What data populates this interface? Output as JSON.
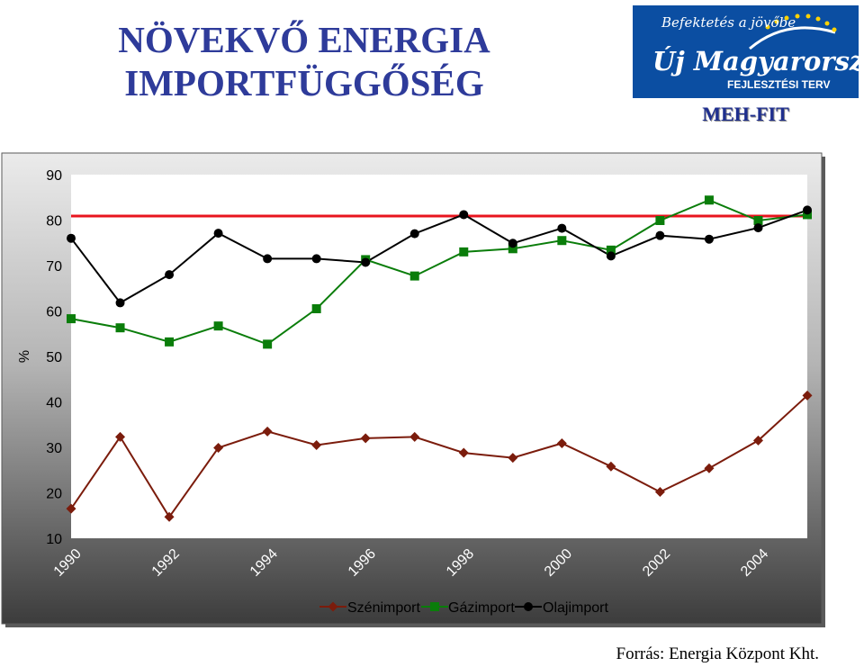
{
  "header": {
    "title_line1": "NÖVEKVŐ ENERGIA",
    "title_line2": "IMPORTFÜGGŐSÉG",
    "logo_tagline": "Befektetés a jövőbe",
    "logo_name": "Új Magyarország",
    "logo_subtitle": "FEJLESZTÉSI TERV",
    "org_label": "MEH-FIT"
  },
  "footer": {
    "source": "Forrás: Energia Központ Kht."
  },
  "colors": {
    "coal": "#7b1c0c",
    "gas": "#0a7d0a",
    "oil": "#000000",
    "reference": "#e8141e",
    "title": "#2e3b9a"
  },
  "chart_data": {
    "type": "line",
    "title": "",
    "xlabel": "",
    "ylabel": "%",
    "ylim": [
      10,
      90
    ],
    "yticks": [
      "10",
      "20",
      "30",
      "40",
      "50",
      "60",
      "70",
      "80",
      "90"
    ],
    "x": [
      1990,
      1991,
      1992,
      1993,
      1994,
      1995,
      1996,
      1997,
      1998,
      1999,
      2000,
      2001,
      2002,
      2003,
      2004,
      2005
    ],
    "xtick_labels": [
      "1990",
      "1992",
      "1994",
      "1996",
      "1998",
      "2000",
      "2002",
      "2004"
    ],
    "grid": false,
    "legend_position": "bottom",
    "reference_line": {
      "y": 80.9
    },
    "series": [
      {
        "name": "Szénimport",
        "marker": "diamond",
        "values": [
          16.5,
          32.3,
          14.7,
          29.9,
          33.5,
          30.5,
          32.0,
          32.3,
          28.8,
          27.7,
          30.9,
          25.8,
          20.2,
          25.4,
          31.5,
          41.4
        ]
      },
      {
        "name": "Gázimport",
        "marker": "square",
        "values": [
          58.3,
          56.3,
          53.2,
          56.7,
          52.7,
          60.5,
          71.3,
          67.7,
          73.0,
          73.7,
          75.5,
          73.4,
          79.9,
          84.4,
          79.9,
          81.2
        ]
      },
      {
        "name": "Olajimport",
        "marker": "circle",
        "values": [
          76.0,
          61.8,
          68.0,
          77.1,
          71.5,
          71.5,
          70.7,
          77.0,
          81.2,
          74.9,
          78.2,
          72.1,
          76.6,
          75.8,
          78.3,
          82.2
        ]
      }
    ]
  }
}
